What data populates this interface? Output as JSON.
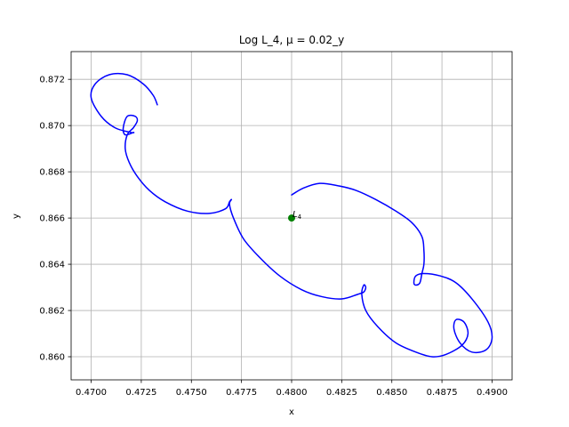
{
  "chart_data": {
    "type": "line",
    "title": "Log L_4, μ = 0.02_y",
    "xlabel": "x",
    "ylabel": "y",
    "xlim": [
      0.469,
      0.491
    ],
    "ylim": [
      0.859,
      0.8732
    ],
    "grid": true,
    "xticks": [
      0.47,
      0.4725,
      0.475,
      0.4775,
      0.48,
      0.4825,
      0.485,
      0.4875,
      0.49
    ],
    "xtick_labels": [
      "0.4700",
      "0.4725",
      "0.4750",
      "0.4775",
      "0.4800",
      "0.4825",
      "0.4850",
      "0.4875",
      "0.4900"
    ],
    "yticks": [
      0.86,
      0.862,
      0.864,
      0.866,
      0.868,
      0.87,
      0.872
    ],
    "ytick_labels": [
      "0.860",
      "0.862",
      "0.864",
      "0.866",
      "0.868",
      "0.870",
      "0.872"
    ],
    "series": [
      {
        "color": "#0000ff",
        "points": [
          [
            0.48,
            0.867
          ],
          [
            0.4806,
            0.8673
          ],
          [
            0.4814,
            0.8675
          ],
          [
            0.4823,
            0.8674
          ],
          [
            0.4832,
            0.8672
          ],
          [
            0.4842,
            0.8668
          ],
          [
            0.4852,
            0.8663
          ],
          [
            0.486,
            0.8658
          ],
          [
            0.4865,
            0.8652
          ],
          [
            0.4866,
            0.8646
          ],
          [
            0.4866,
            0.864
          ],
          [
            0.4865,
            0.8636
          ],
          [
            0.4864,
            0.8632
          ],
          [
            0.4862,
            0.8631
          ],
          [
            0.4861,
            0.8632
          ],
          [
            0.4862,
            0.8635
          ],
          [
            0.4866,
            0.8636
          ],
          [
            0.4874,
            0.8635
          ],
          [
            0.4882,
            0.8632
          ],
          [
            0.489,
            0.8625
          ],
          [
            0.4898,
            0.8615
          ],
          [
            0.49,
            0.8608
          ],
          [
            0.4897,
            0.8603
          ],
          [
            0.489,
            0.8602
          ],
          [
            0.4884,
            0.8606
          ],
          [
            0.4881,
            0.8612
          ],
          [
            0.4882,
            0.8616
          ],
          [
            0.4886,
            0.8615
          ],
          [
            0.4888,
            0.861
          ],
          [
            0.4885,
            0.8605
          ],
          [
            0.4877,
            0.8601
          ],
          [
            0.487,
            0.86
          ],
          [
            0.4862,
            0.8602
          ],
          [
            0.4852,
            0.8606
          ],
          [
            0.4843,
            0.8613
          ],
          [
            0.4837,
            0.862
          ],
          [
            0.4835,
            0.8627
          ],
          [
            0.4836,
            0.8631
          ],
          [
            0.4837,
            0.863
          ],
          [
            0.4836,
            0.8628
          ],
          [
            0.4833,
            0.8627
          ],
          [
            0.4825,
            0.8625
          ],
          [
            0.4815,
            0.8626
          ],
          [
            0.4805,
            0.8629
          ],
          [
            0.4794,
            0.8635
          ],
          [
            0.4784,
            0.8643
          ],
          [
            0.4776,
            0.8651
          ],
          [
            0.4771,
            0.866
          ],
          [
            0.4769,
            0.8666
          ],
          [
            0.477,
            0.8668
          ],
          [
            0.4769,
            0.8667
          ],
          [
            0.4767,
            0.8664
          ],
          [
            0.4759,
            0.8662
          ],
          [
            0.4748,
            0.8663
          ],
          [
            0.4737,
            0.8667
          ],
          [
            0.4729,
            0.8672
          ],
          [
            0.4723,
            0.8678
          ],
          [
            0.4719,
            0.8684
          ],
          [
            0.4717,
            0.869
          ],
          [
            0.4718,
            0.8696
          ],
          [
            0.4721,
            0.8699
          ],
          [
            0.4723,
            0.8702
          ],
          [
            0.4722,
            0.8704
          ],
          [
            0.4718,
            0.8704
          ],
          [
            0.4716,
            0.8699
          ],
          [
            0.4717,
            0.8696
          ],
          [
            0.4721,
            0.8697
          ],
          [
            0.472,
            0.8697
          ],
          [
            0.4712,
            0.8699
          ],
          [
            0.4705,
            0.8704
          ],
          [
            0.47,
            0.8712
          ],
          [
            0.4702,
            0.8718
          ],
          [
            0.4709,
            0.8722
          ],
          [
            0.4718,
            0.8722
          ],
          [
            0.4726,
            0.8718
          ],
          [
            0.4731,
            0.8713
          ],
          [
            0.4733,
            0.8709
          ]
        ]
      }
    ],
    "points": [
      {
        "label": "L",
        "subscript": "4",
        "x": 0.48,
        "y": 0.866,
        "color": "#008000"
      }
    ]
  }
}
